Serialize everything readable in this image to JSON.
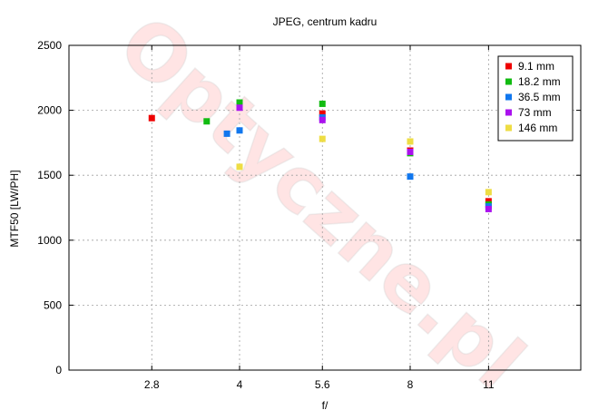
{
  "chart_data": {
    "type": "scatter",
    "title": "JPEG, centrum kadru",
    "xlabel": "f/",
    "ylabel": "MTF50 [LW/PH]",
    "ylim": [
      0,
      2500
    ],
    "yticks": [
      0,
      500,
      1000,
      1500,
      2000,
      2500
    ],
    "xticks": [
      "2.8",
      "4",
      "5.6",
      "8",
      "11"
    ],
    "x_scale": "log",
    "xlim": [
      2.0,
      16.0
    ],
    "grid": true,
    "legend_position": "top-right",
    "watermark": "Optyczne.pl",
    "series": [
      {
        "name": "9.1 mm",
        "color": "#ee0000",
        "points": [
          {
            "x": 2.8,
            "y": 1940
          },
          {
            "x": 5.6,
            "y": 1975
          },
          {
            "x": 8,
            "y": 1690
          },
          {
            "x": 11,
            "y": 1300
          }
        ]
      },
      {
        "name": "18.2 mm",
        "color": "#11bb11",
        "points": [
          {
            "x": 3.5,
            "y": 1915
          },
          {
            "x": 4,
            "y": 2060
          },
          {
            "x": 5.6,
            "y": 2050
          },
          {
            "x": 8,
            "y": 1670
          },
          {
            "x": 11,
            "y": 1275
          }
        ]
      },
      {
        "name": "36.5 mm",
        "color": "#1177ee",
        "points": [
          {
            "x": 3.8,
            "y": 1820
          },
          {
            "x": 4,
            "y": 1845
          },
          {
            "x": 5.6,
            "y": 1945
          },
          {
            "x": 8,
            "y": 1490
          },
          {
            "x": 11,
            "y": 1260
          }
        ]
      },
      {
        "name": "73 mm",
        "color": "#aa11ee",
        "points": [
          {
            "x": 4,
            "y": 2020
          },
          {
            "x": 5.6,
            "y": 1925
          },
          {
            "x": 8,
            "y": 1680
          },
          {
            "x": 11,
            "y": 1240
          }
        ]
      },
      {
        "name": "146 mm",
        "color": "#eedd44",
        "points": [
          {
            "x": 4,
            "y": 1565
          },
          {
            "x": 5.6,
            "y": 1780
          },
          {
            "x": 8,
            "y": 1760
          },
          {
            "x": 11,
            "y": 1370
          }
        ]
      }
    ]
  }
}
